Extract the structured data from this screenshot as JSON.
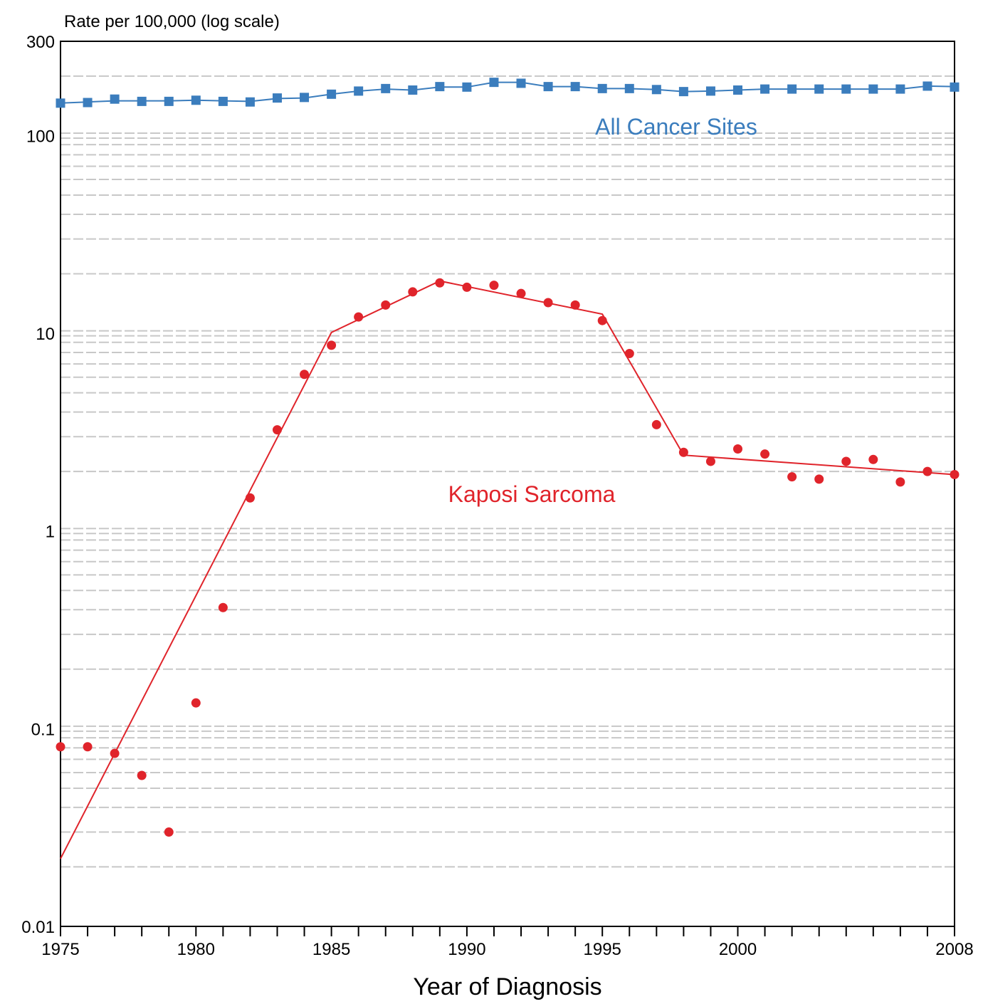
{
  "chart_data": {
    "type": "line",
    "xlabel": "Year of Diagnosis",
    "ylabel": "Rate per 100,000 (log scale)",
    "xlim": [
      1975,
      2008
    ],
    "ylim": [
      0.01,
      300
    ],
    "yscale": "log",
    "grid": "horizontal dashed",
    "x_tick_labels": [
      "1975",
      "1980",
      "1985",
      "1990",
      "1995",
      "2000",
      "2008"
    ],
    "y_tick_labels": [
      "0.01",
      "0.1",
      "1",
      "10",
      "100",
      "300"
    ],
    "series": [
      {
        "name": "All Cancer Sites",
        "color": "#3b7dbd",
        "marker": "square",
        "x": [
          1975,
          1976,
          1977,
          1978,
          1979,
          1980,
          1981,
          1982,
          1983,
          1984,
          1985,
          1986,
          1987,
          1988,
          1989,
          1990,
          1991,
          1992,
          1993,
          1994,
          1995,
          1996,
          1997,
          1998,
          1999,
          2000,
          2001,
          2002,
          2003,
          2004,
          2005,
          2006,
          2007,
          2008
        ],
        "observed": [
          146,
          147,
          153,
          149,
          149,
          151,
          149,
          148,
          155,
          156,
          162,
          168,
          173,
          170,
          177,
          176,
          186,
          184,
          177,
          177,
          173,
          173,
          171,
          167,
          168,
          170,
          172,
          172,
          172,
          172,
          172,
          172,
          178,
          176
        ],
        "fitted": [
          146,
          148,
          150,
          150,
          150,
          151,
          150,
          149,
          154,
          155,
          162,
          168,
          172,
          170,
          176,
          176,
          186,
          186,
          177,
          177,
          173,
          173,
          171,
          167,
          168,
          170,
          172,
          172,
          172,
          172,
          172,
          172,
          178,
          177
        ]
      },
      {
        "name": "Kaposi Sarcoma",
        "color": "#e0242b",
        "marker": "circle",
        "x": [
          1975,
          1976,
          1977,
          1978,
          1979,
          1980,
          1981,
          1982,
          1983,
          1984,
          1985,
          1986,
          1987,
          1988,
          1989,
          1990,
          1991,
          1992,
          1993,
          1994,
          1995,
          1996,
          1997,
          1998,
          1999,
          2000,
          2001,
          2002,
          2003,
          2004,
          2005,
          2006,
          2007,
          2008
        ],
        "observed": [
          0.081,
          0.081,
          0.075,
          0.058,
          0.03,
          0.135,
          0.41,
          1.47,
          3.25,
          6.2,
          8.7,
          12.1,
          13.9,
          16.2,
          18.0,
          17.1,
          17.5,
          15.9,
          14.3,
          13.9,
          11.6,
          7.9,
          3.45,
          2.5,
          2.25,
          2.6,
          2.45,
          1.88,
          1.83,
          2.25,
          2.3,
          1.77,
          2.0,
          1.93
        ],
        "trend_x": [
          1975,
          1985,
          1989,
          1995,
          1998,
          2008
        ],
        "trend_y": [
          0.022,
          10.1,
          18.4,
          12.5,
          2.42,
          1.93
        ]
      }
    ]
  }
}
